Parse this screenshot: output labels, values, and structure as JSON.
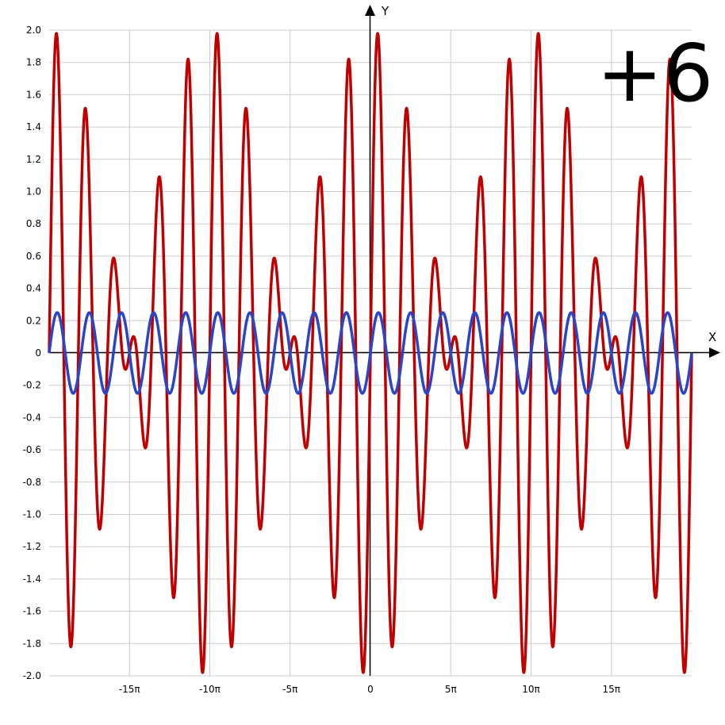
{
  "overlay_text": "+6",
  "chart_data": {
    "type": "line",
    "title": "",
    "xlabel": "X",
    "ylabel": "Y",
    "xlim_in_pi": [
      -20,
      20
    ],
    "ylim": [
      -2.0,
      2.0
    ],
    "grid": true,
    "x_ticks": [
      {
        "value_in_pi": -15,
        "label": "-15π"
      },
      {
        "value_in_pi": -10,
        "label": "-10π"
      },
      {
        "value_in_pi": -5,
        "label": "-5π"
      },
      {
        "value_in_pi": 0,
        "label": "0"
      },
      {
        "value_in_pi": 5,
        "label": "5π"
      },
      {
        "value_in_pi": 10,
        "label": "10π"
      },
      {
        "value_in_pi": 15,
        "label": "15π"
      }
    ],
    "y_ticks": [
      {
        "value": 2.0,
        "label": "2.0"
      },
      {
        "value": 1.8,
        "label": "1.8"
      },
      {
        "value": 1.6,
        "label": "1.6"
      },
      {
        "value": 1.4,
        "label": "1.4"
      },
      {
        "value": 1.2,
        "label": "1.2"
      },
      {
        "value": 1.0,
        "label": "1.0"
      },
      {
        "value": 0.8,
        "label": "0.8"
      },
      {
        "value": 0.6,
        "label": "0.6"
      },
      {
        "value": 0.4,
        "label": "0.4"
      },
      {
        "value": 0.2,
        "label": "0.2"
      },
      {
        "value": 0,
        "label": "0"
      },
      {
        "value": -0.2,
        "label": "-0.2"
      },
      {
        "value": -0.4,
        "label": "-0.4"
      },
      {
        "value": -0.6,
        "label": "-0.6"
      },
      {
        "value": -0.8,
        "label": "-0.8"
      },
      {
        "value": -1.0,
        "label": "-1.0"
      },
      {
        "value": -1.2,
        "label": "-1.2"
      },
      {
        "value": -1.4,
        "label": "-1.4"
      },
      {
        "value": -1.6,
        "label": "-1.6"
      },
      {
        "value": -1.8,
        "label": "-1.8"
      },
      {
        "value": -2.0,
        "label": "-2.0"
      }
    ],
    "series": [
      {
        "color": "#c00000",
        "function": "sin(x) + sin(1.2x)",
        "description": "red curve, beat envelope, amplitude up to 2"
      },
      {
        "color": "#2a45c8",
        "function": "0.25 * sin(x)",
        "description": "blue curve, amplitude 0.25, period 2π"
      }
    ]
  }
}
